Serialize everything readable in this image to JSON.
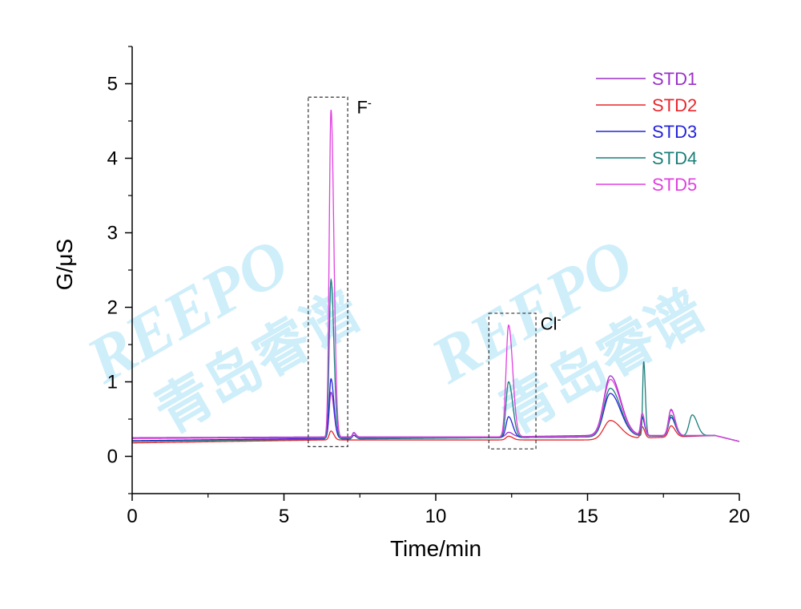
{
  "chart_data": {
    "type": "line",
    "xlabel": "Time/min",
    "ylabel": "G/μS",
    "xlim": [
      0,
      20
    ],
    "ylim": [
      -0.5,
      5.5
    ],
    "x_ticks": [
      "0",
      "5",
      "10",
      "15",
      "20"
    ],
    "y_ticks": [
      "0",
      "1",
      "2",
      "3",
      "4",
      "5"
    ],
    "grid": false,
    "legend_position": "top-right",
    "series": [
      {
        "name": "STD1",
        "color": "#9b30c8",
        "baseline": [
          [
            0,
            0.25
          ],
          [
            6.3,
            0.26
          ],
          [
            12,
            0.26
          ],
          [
            15,
            0.28
          ],
          [
            19.2,
            0.28
          ],
          [
            20,
            0.2
          ]
        ],
        "peaks": [
          [
            6.55,
            0.6,
            0.07
          ],
          [
            7.3,
            0.06,
            0.05
          ],
          [
            12.4,
            0.06,
            0.1
          ],
          [
            15.75,
            0.8,
            0.25
          ],
          [
            16.8,
            0.25,
            0.06
          ],
          [
            17.75,
            0.35,
            0.1
          ]
        ]
      },
      {
        "name": "STD2",
        "color": "#e8262b",
        "baseline": [
          [
            0,
            0.18
          ],
          [
            6.3,
            0.22
          ],
          [
            12,
            0.22
          ],
          [
            15,
            0.22
          ],
          [
            19.2,
            0.28
          ],
          [
            20,
            0.2
          ]
        ],
        "peaks": [
          [
            6.55,
            0.12,
            0.07
          ],
          [
            12.4,
            0.05,
            0.1
          ],
          [
            15.75,
            0.25,
            0.25
          ],
          [
            16.8,
            0.15,
            0.06
          ],
          [
            17.75,
            0.15,
            0.1
          ]
        ]
      },
      {
        "name": "STD3",
        "color": "#2323d8",
        "baseline": [
          [
            0,
            0.21
          ],
          [
            6.3,
            0.24
          ],
          [
            12,
            0.25
          ],
          [
            15,
            0.26
          ],
          [
            19.2,
            0.28
          ],
          [
            20,
            0.2
          ]
        ],
        "peaks": [
          [
            6.55,
            0.8,
            0.07
          ],
          [
            7.3,
            0.04,
            0.05
          ],
          [
            12.4,
            0.28,
            0.1
          ],
          [
            15.75,
            0.58,
            0.25
          ],
          [
            16.8,
            0.25,
            0.06
          ],
          [
            17.75,
            0.25,
            0.1
          ]
        ]
      },
      {
        "name": "STD4",
        "color": "#1a7f7a",
        "baseline": [
          [
            0,
            0.2
          ],
          [
            6.3,
            0.23
          ],
          [
            12,
            0.25
          ],
          [
            15,
            0.26
          ],
          [
            19.2,
            0.28
          ],
          [
            20,
            0.2
          ]
        ],
        "peaks": [
          [
            6.55,
            2.14,
            0.07
          ],
          [
            7.3,
            0.08,
            0.05
          ],
          [
            12.4,
            0.75,
            0.1
          ],
          [
            15.75,
            0.65,
            0.25
          ],
          [
            16.85,
            1.0,
            0.04
          ],
          [
            17.75,
            0.28,
            0.1
          ],
          [
            18.45,
            0.28,
            0.12
          ]
        ]
      },
      {
        "name": "STD5",
        "color": "#e040e0",
        "baseline": [
          [
            0,
            0.24
          ],
          [
            6.3,
            0.25
          ],
          [
            12,
            0.26
          ],
          [
            15,
            0.27
          ],
          [
            19.2,
            0.28
          ],
          [
            20,
            0.2
          ]
        ],
        "peaks": [
          [
            6.55,
            4.4,
            0.07
          ],
          [
            7.3,
            0.06,
            0.05
          ],
          [
            12.4,
            1.5,
            0.1
          ],
          [
            15.75,
            0.76,
            0.25
          ],
          [
            16.8,
            0.3,
            0.06
          ],
          [
            17.75,
            0.34,
            0.1
          ]
        ]
      }
    ],
    "annotations": [
      {
        "label": "F",
        "superscript": "-",
        "box_x": [
          5.8,
          7.1
        ],
        "box_y": [
          0.13,
          4.82
        ],
        "label_at": [
          7.4,
          4.6
        ]
      },
      {
        "label": "Cl",
        "superscript": "-",
        "box_x": [
          11.75,
          13.3
        ],
        "box_y": [
          0.1,
          1.92
        ],
        "label_at": [
          13.45,
          1.7
        ]
      }
    ]
  },
  "watermark": {
    "latin": "REEPO",
    "cjk": "青岛睿谱",
    "color": "#5fc8f0"
  }
}
